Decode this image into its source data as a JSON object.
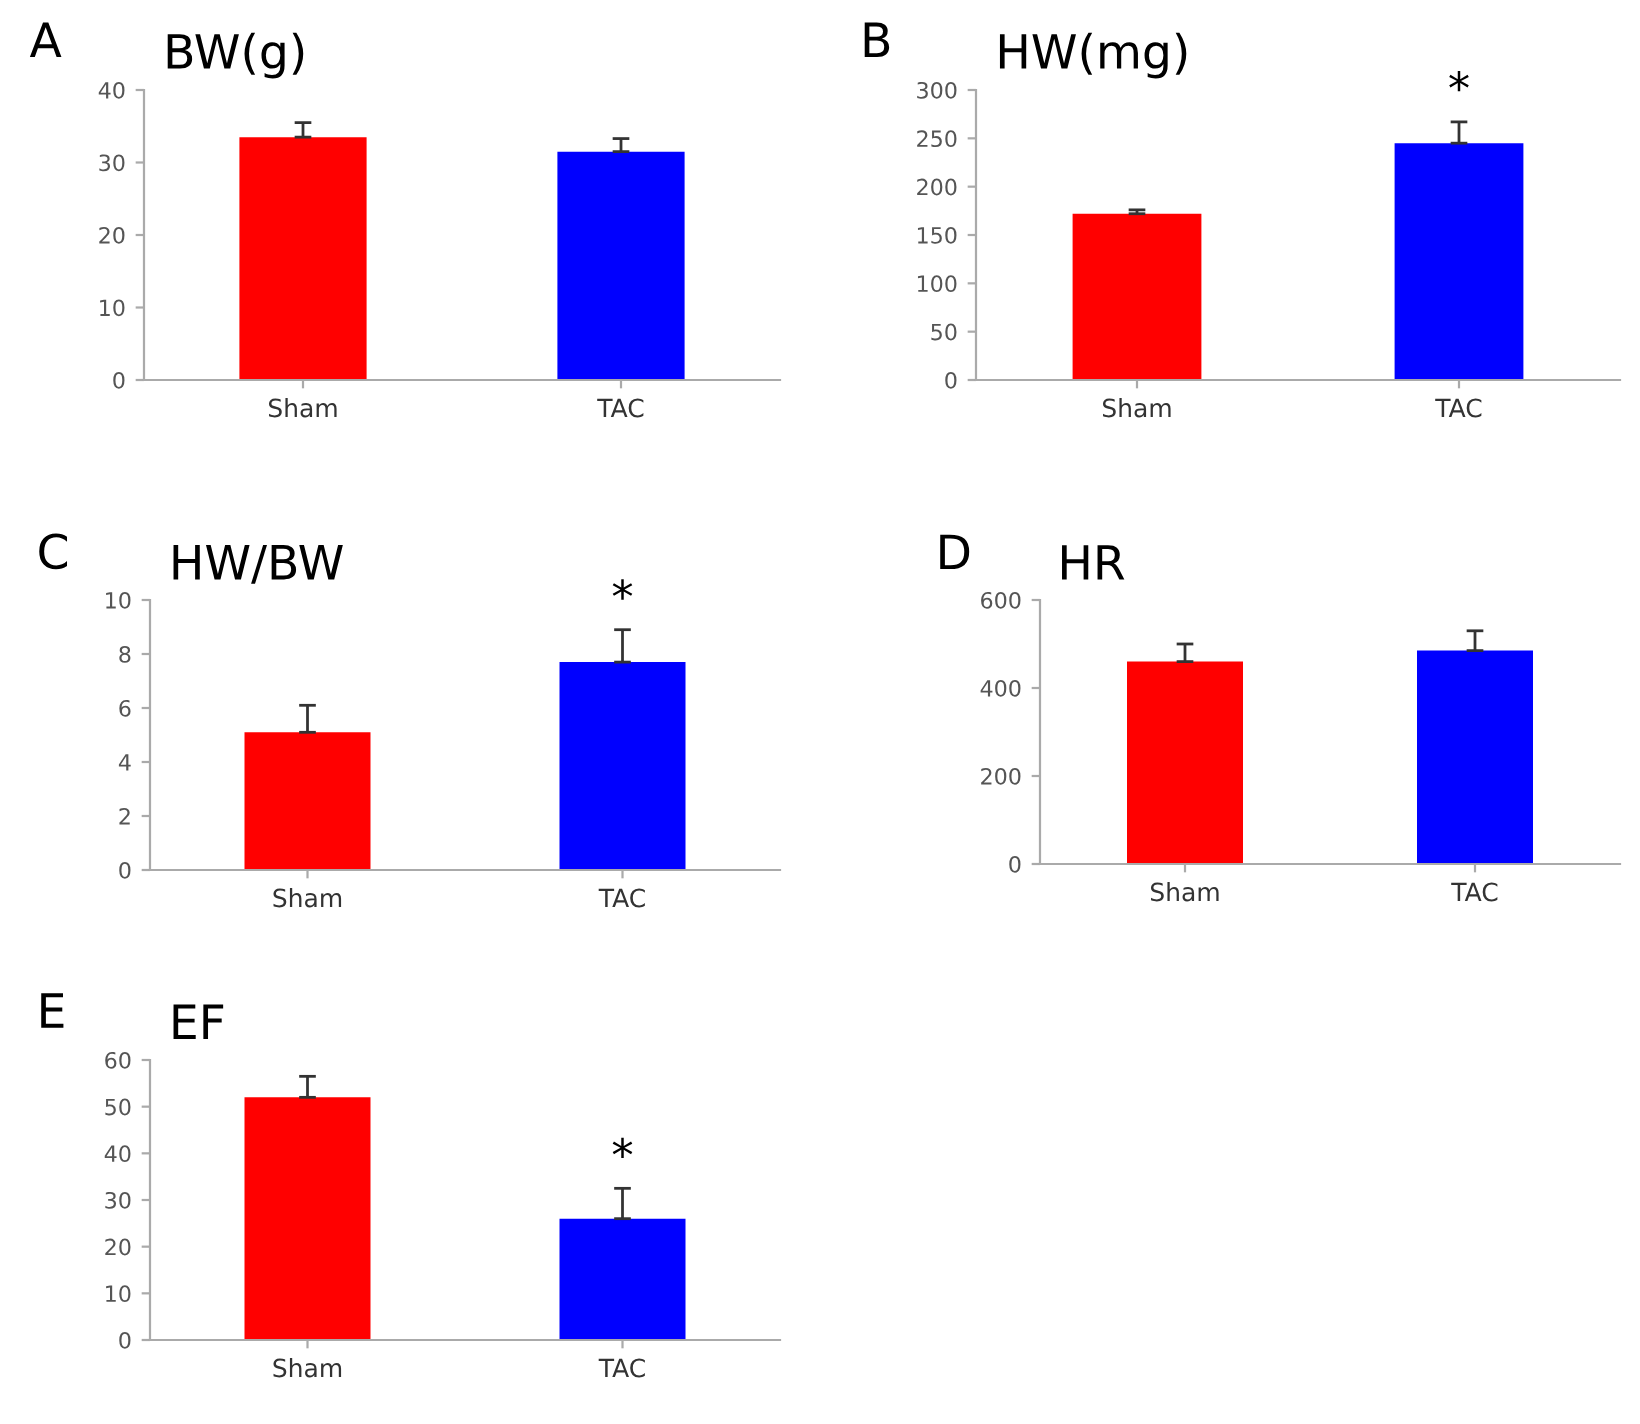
{
  "chart_data": [
    {
      "type": "bar",
      "title": "BW(g)",
      "annotations": [
        "A"
      ],
      "categories": [
        "Sham",
        "TAC"
      ],
      "values": [
        33.5,
        31.5
      ],
      "colors": [
        "#ff0000",
        "#0000ff"
      ],
      "errors": [
        [
          33.5,
          35.5
        ],
        [
          31.5,
          33.3
        ]
      ],
      "ylim": [
        0,
        40
      ],
      "yticks": [
        0,
        10,
        20,
        30,
        40
      ],
      "grid": false,
      "legend": false
    },
    {
      "type": "bar",
      "title": "HW(mg)",
      "annotations": [
        "B",
        "*"
      ],
      "categories": [
        "Sham",
        "TAC"
      ],
      "values": [
        172,
        245
      ],
      "colors": [
        "#ff0000",
        "#0000ff"
      ],
      "errors": [
        [
          172,
          176
        ],
        [
          245,
          267
        ]
      ],
      "ylim": [
        0,
        300
      ],
      "yticks": [
        0,
        50,
        100,
        150,
        200,
        250,
        300
      ],
      "grid": false,
      "legend": false
    },
    {
      "type": "bar",
      "title": "HW/BW",
      "annotations": [
        "C",
        "*"
      ],
      "categories": [
        "Sham",
        "TAC"
      ],
      "values": [
        5.1,
        7.7
      ],
      "colors": [
        "#ff0000",
        "#0000ff"
      ],
      "errors": [
        [
          5.1,
          6.1
        ],
        [
          7.7,
          8.9
        ]
      ],
      "ylim": [
        0,
        10
      ],
      "yticks": [
        0,
        2,
        4,
        6,
        8,
        10
      ],
      "grid": false,
      "legend": false
    },
    {
      "type": "bar",
      "title": "HR",
      "annotations": [
        "D"
      ],
      "categories": [
        "Sham",
        "TAC"
      ],
      "values": [
        460,
        485
      ],
      "colors": [
        "#ff0000",
        "#0000ff"
      ],
      "errors": [
        [
          460,
          500
        ],
        [
          485,
          530
        ]
      ],
      "ylim": [
        0,
        600
      ],
      "yticks": [
        0,
        200,
        400,
        600
      ],
      "grid": false,
      "legend": false
    },
    {
      "type": "bar",
      "title": "EF",
      "annotations": [
        "E",
        "*"
      ],
      "categories": [
        "Sham",
        "TAC"
      ],
      "values": [
        52,
        26
      ],
      "colors": [
        "#ff0000",
        "#0000ff"
      ],
      "errors": [
        [
          52,
          56.5
        ],
        [
          26,
          32.5
        ]
      ],
      "ylim": [
        0,
        60
      ],
      "yticks": [
        0,
        10,
        20,
        30,
        40,
        50,
        60
      ],
      "grid": false,
      "legend": false
    }
  ]
}
